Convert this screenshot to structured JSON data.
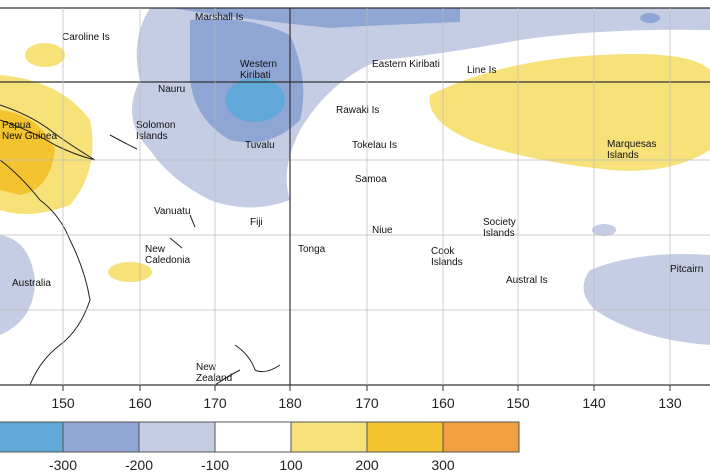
{
  "places": [
    {
      "lines": [
        "Marshall Is"
      ]
    },
    {
      "lines": [
        "Caroline Is"
      ]
    },
    {
      "lines": [
        "Western",
        "Kiribati"
      ]
    },
    {
      "lines": [
        "Eastern Kiribati"
      ]
    },
    {
      "lines": [
        "Line Is"
      ]
    },
    {
      "lines": [
        "Nauru"
      ]
    },
    {
      "lines": [
        "Papua",
        "New Guinea"
      ]
    },
    {
      "lines": [
        "Solomon",
        "Islands"
      ]
    },
    {
      "lines": [
        "Rawaki Is"
      ]
    },
    {
      "lines": [
        "Tuvalu"
      ]
    },
    {
      "lines": [
        "Tokelau Is"
      ]
    },
    {
      "lines": [
        "Marquesas",
        "Islands"
      ]
    },
    {
      "lines": [
        "Samoa"
      ]
    },
    {
      "lines": [
        "Vanuatu"
      ]
    },
    {
      "lines": [
        "Fiji"
      ]
    },
    {
      "lines": [
        "Niue"
      ]
    },
    {
      "lines": [
        "Society",
        "Islands"
      ]
    },
    {
      "lines": [
        "Tonga"
      ]
    },
    {
      "lines": [
        "Cook",
        "Islands"
      ]
    },
    {
      "lines": [
        "New",
        "Caledonia"
      ]
    },
    {
      "lines": [
        "Austral Is"
      ]
    },
    {
      "lines": [
        "Pitcairn"
      ]
    },
    {
      "lines": [
        "Australia"
      ]
    },
    {
      "lines": [
        "New",
        "Zealand"
      ]
    }
  ],
  "longitudes": [
    150,
    160,
    170,
    180,
    170,
    160,
    150,
    140,
    130
  ],
  "legend": {
    "labels": [
      -300,
      -200,
      -100,
      100,
      200,
      300
    ]
  }
}
